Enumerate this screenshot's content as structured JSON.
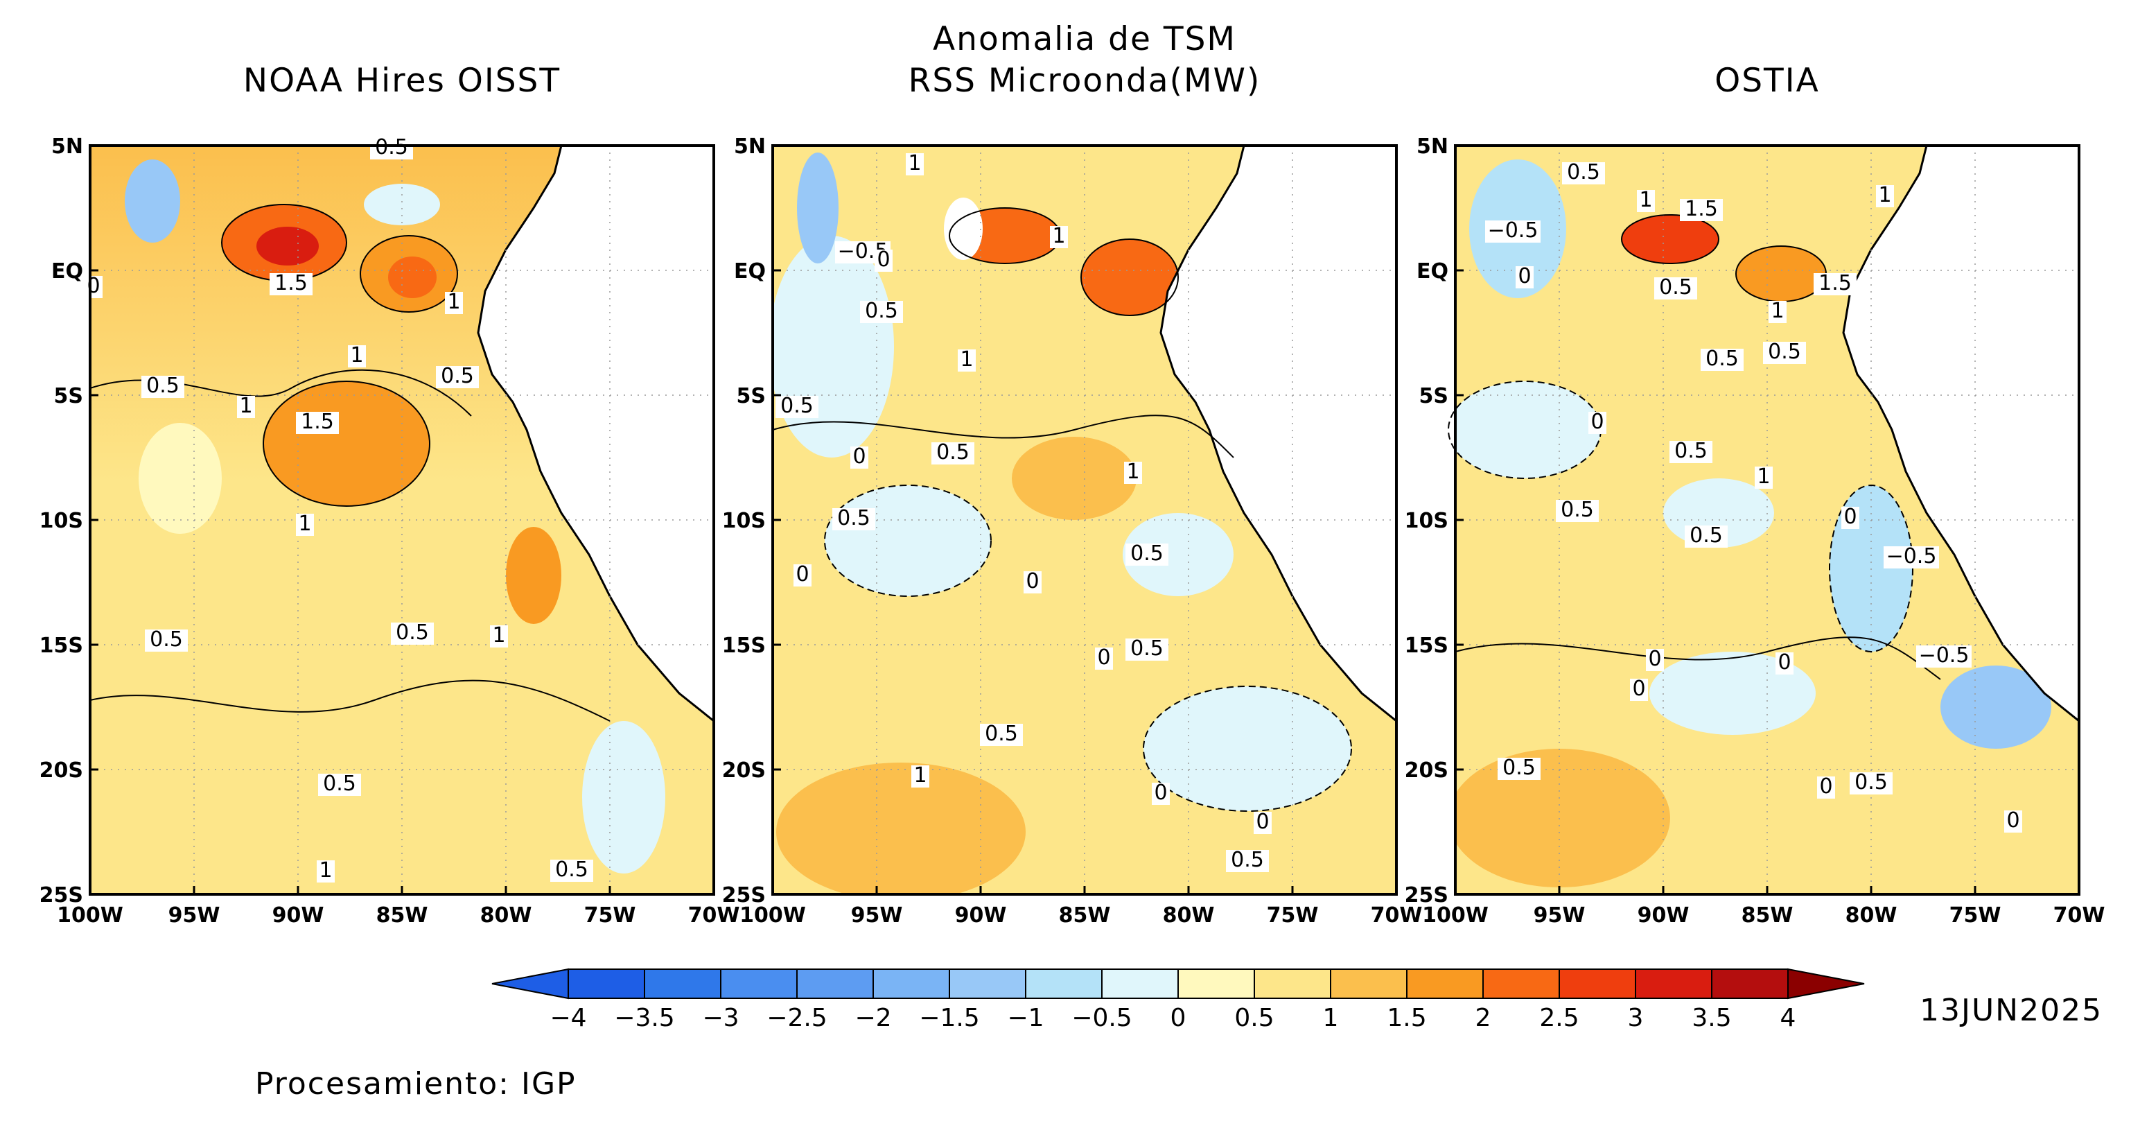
{
  "figure": {
    "main_title": [
      "Anomalia de TSM",
      "RSS Microonda(MW)"
    ],
    "panels": [
      {
        "id": "oisst",
        "title": "NOAA Hires OISST",
        "contour_labels": [
          "0.5",
          "1.5",
          "1",
          "1",
          "0.5",
          "0.5",
          "1",
          "1.5",
          "1",
          "0.5",
          "0.5",
          "1",
          "0.5",
          "1",
          "0.5",
          "0"
        ]
      },
      {
        "id": "rss",
        "title": "RSS Microonda(MW)",
        "contour_labels": [
          "1",
          "−0.5",
          "0",
          "0.5",
          "1",
          "1",
          "0.5",
          "0",
          "0.5",
          "1",
          "0.5",
          "0.5",
          "0",
          "0",
          "0.5",
          "0",
          "0.5",
          "1",
          "0",
          "0",
          "0.5"
        ]
      },
      {
        "id": "ostia",
        "title": "OSTIA",
        "contour_labels": [
          "0.5",
          "1",
          "1.5",
          "1",
          "−0.5",
          "0",
          "0.5",
          "1.5",
          "1",
          "0.5",
          "0.5",
          "0",
          "0.5",
          "1",
          "0.5",
          "0.5",
          "0",
          "−0.5",
          "0",
          "0",
          "−0.5",
          "0.5",
          "0",
          "0.5",
          "0",
          "0"
        ]
      }
    ],
    "x_ticks": [
      "100W",
      "95W",
      "90W",
      "85W",
      "80W",
      "75W",
      "70W"
    ],
    "y_ticks": [
      "5N",
      "EQ",
      "5S",
      "10S",
      "15S",
      "20S",
      "25S"
    ],
    "colorbar": {
      "ticks": [
        "−4",
        "−3.5",
        "−3",
        "−2.5",
        "−2",
        "−1.5",
        "−1",
        "−0.5",
        "0",
        "0.5",
        "1",
        "1.5",
        "2",
        "2.5",
        "3",
        "3.5",
        "4"
      ],
      "colors": [
        "#1e5ee6",
        "#2f78ea",
        "#4a8ef0",
        "#5d9cf2",
        "#7ab4f5",
        "#98c8f7",
        "#b4e2f8",
        "#e0f6fb",
        "#fff9be",
        "#fde68a",
        "#fbbf4d",
        "#f99a22",
        "#f86914",
        "#ef3e0e",
        "#d91d10",
        "#b40e0e",
        "#8b0000"
      ]
    },
    "date": "13JUN2025",
    "credit": "Procesamiento: IGP",
    "map_colors": {
      "land": "#ffffff",
      "grid": "#9a9a9a",
      "contour": "#000000"
    }
  }
}
